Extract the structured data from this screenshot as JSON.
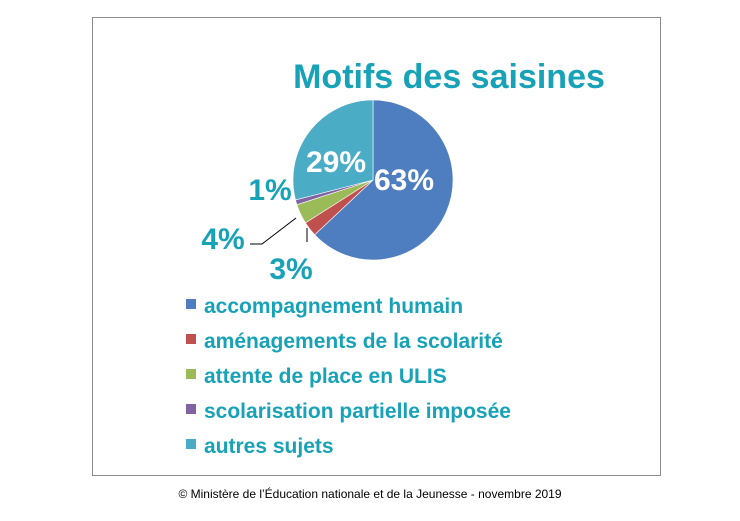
{
  "chart_data": {
    "type": "pie",
    "title": "Motifs des saisines",
    "slices": [
      {
        "label": "accompagnement humain",
        "value": 63,
        "display": "63%",
        "color": "#4f7ec0"
      },
      {
        "label": "aménagements de la scolarité",
        "value": 3,
        "display": "3%",
        "color": "#c0504d"
      },
      {
        "label": "attente de place en ULIS",
        "value": 4,
        "display": "4%",
        "color": "#9bbb59"
      },
      {
        "label": "scolarisation partielle imposée",
        "value": 1,
        "display": "1%",
        "color": "#8064a2"
      },
      {
        "label": "autres sujets",
        "value": 29,
        "display": "29%",
        "color": "#4bacc6"
      }
    ],
    "legend_position": "bottom",
    "label_color": "#17a2b8"
  },
  "footer": {
    "credit": "© Ministère de l’Éducation nationale et de la Jeunesse - novembre 2019"
  }
}
